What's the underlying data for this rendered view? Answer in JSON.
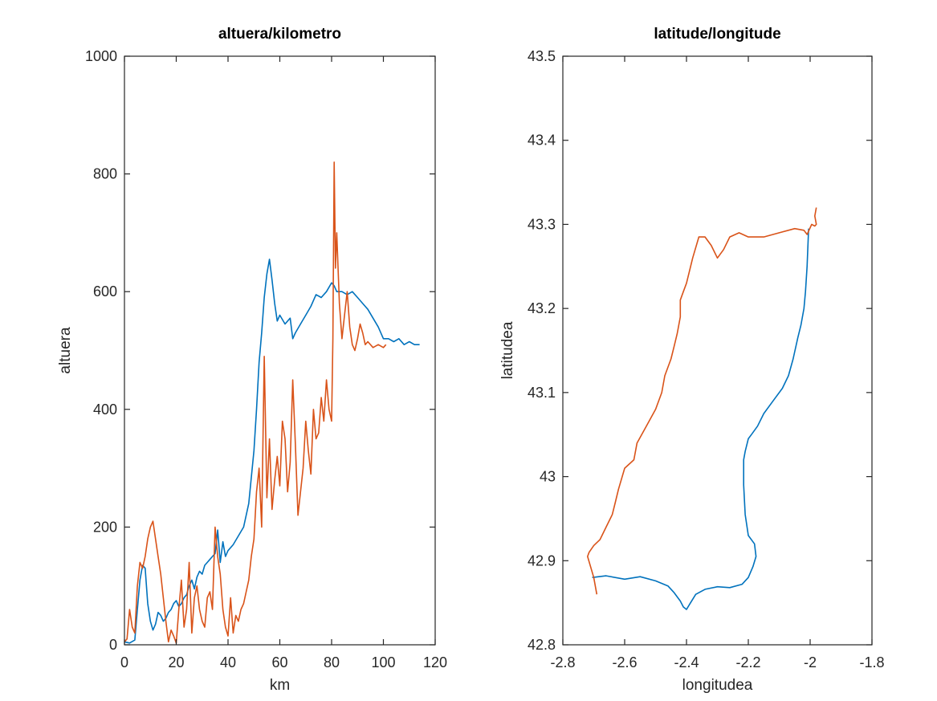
{
  "chart_data": [
    {
      "type": "line",
      "title": "altuera/kilometro",
      "xlabel": "km",
      "ylabel": "altuera",
      "xlim": [
        0,
        120
      ],
      "ylim": [
        0,
        1000
      ],
      "xticks": [
        0,
        20,
        40,
        60,
        80,
        100,
        120
      ],
      "yticks": [
        0,
        200,
        400,
        600,
        800,
        1000
      ],
      "xtick_labels": [
        "0",
        "20",
        "40",
        "60",
        "80",
        "100",
        "120"
      ],
      "ytick_labels": [
        "0",
        "200",
        "400",
        "600",
        "800",
        "1000"
      ],
      "grid": false,
      "series": [
        {
          "color": "#0072BD",
          "x": [
            0,
            2,
            4,
            5,
            6,
            7,
            8,
            9,
            10,
            11,
            12,
            13,
            14,
            15,
            16,
            17,
            18,
            19,
            20,
            21,
            22,
            23,
            24,
            25,
            26,
            27,
            28,
            29,
            30,
            31,
            32,
            33,
            34,
            35,
            36,
            37,
            38,
            39,
            40,
            42,
            44,
            46,
            48,
            50,
            51,
            52,
            53,
            54,
            55,
            56,
            57,
            58,
            59,
            60,
            62,
            64,
            65,
            66,
            68,
            70,
            72,
            74,
            76,
            78,
            80,
            81,
            82,
            84,
            86,
            88,
            90,
            92,
            94,
            96,
            98,
            100,
            102,
            104,
            106,
            108,
            110,
            112,
            114
          ],
          "y": [
            5,
            3,
            8,
            60,
            110,
            135,
            130,
            70,
            40,
            25,
            35,
            55,
            50,
            40,
            45,
            55,
            60,
            70,
            75,
            65,
            70,
            80,
            85,
            100,
            110,
            95,
            115,
            125,
            120,
            135,
            140,
            145,
            150,
            155,
            195,
            140,
            175,
            150,
            160,
            170,
            185,
            200,
            240,
            330,
            400,
            480,
            530,
            590,
            630,
            655,
            620,
            580,
            550,
            560,
            545,
            555,
            520,
            530,
            545,
            560,
            575,
            595,
            590,
            600,
            615,
            610,
            600,
            600,
            595,
            600,
            590,
            580,
            570,
            555,
            540,
            520,
            520,
            515,
            520,
            510,
            515,
            510,
            510
          ]
        },
        {
          "color": "#D95319",
          "x": [
            0,
            1,
            2,
            3,
            4,
            5,
            6,
            7,
            8,
            9,
            10,
            11,
            12,
            13,
            14,
            15,
            16,
            17,
            18,
            19,
            20,
            21,
            22,
            23,
            24,
            25,
            26,
            27,
            28,
            29,
            30,
            31,
            32,
            33,
            34,
            35,
            36,
            37,
            38,
            39,
            40,
            41,
            42,
            43,
            44,
            45,
            46,
            47,
            48,
            49,
            50,
            51,
            52,
            53,
            54,
            55,
            56,
            57,
            58,
            59,
            60,
            61,
            62,
            63,
            64,
            65,
            66,
            67,
            68,
            69,
            70,
            71,
            72,
            73,
            74,
            75,
            76,
            77,
            78,
            79,
            80,
            80.5,
            81,
            81.5,
            82,
            83,
            84,
            85,
            86,
            87,
            88,
            89,
            90,
            91,
            92,
            93,
            94,
            96,
            98,
            100,
            101
          ],
          "y": [
            5,
            10,
            60,
            30,
            20,
            100,
            140,
            130,
            150,
            180,
            200,
            210,
            180,
            150,
            120,
            80,
            40,
            5,
            25,
            15,
            3,
            60,
            110,
            30,
            60,
            140,
            20,
            80,
            100,
            60,
            40,
            30,
            80,
            90,
            60,
            200,
            150,
            120,
            60,
            30,
            15,
            80,
            20,
            50,
            40,
            60,
            70,
            90,
            110,
            150,
            180,
            260,
            300,
            200,
            490,
            250,
            350,
            230,
            280,
            320,
            270,
            380,
            350,
            260,
            310,
            450,
            340,
            220,
            260,
            300,
            380,
            330,
            290,
            400,
            350,
            360,
            420,
            380,
            450,
            400,
            380,
            520,
            820,
            640,
            700,
            580,
            520,
            560,
            600,
            540,
            510,
            500,
            520,
            545,
            530,
            510,
            515,
            505,
            510,
            505,
            510
          ]
        }
      ]
    },
    {
      "type": "line",
      "title": "latitude/longitude",
      "xlabel": "longitudea",
      "ylabel": "latitudea",
      "xlim": [
        -2.8,
        -1.8
      ],
      "ylim": [
        42.8,
        43.5
      ],
      "xticks": [
        -2.8,
        -2.6,
        -2.4,
        -2.2,
        -2,
        -1.8
      ],
      "yticks": [
        42.8,
        42.9,
        43,
        43.1,
        43.2,
        43.3,
        43.4,
        43.5
      ],
      "xtick_labels": [
        "-2.8",
        "-2.6",
        "-2.4",
        "-2.2",
        "-2",
        "-1.8"
      ],
      "ytick_labels": [
        "42.8",
        "42.9",
        "43",
        "43.1",
        "43.2",
        "43.3",
        "43.4",
        "43.5"
      ],
      "grid": false,
      "series": [
        {
          "color": "#0072BD",
          "x": [
            -2.705,
            -2.66,
            -2.6,
            -2.55,
            -2.5,
            -2.46,
            -2.44,
            -2.42,
            -2.41,
            -2.4,
            -2.39,
            -2.37,
            -2.34,
            -2.3,
            -2.26,
            -2.22,
            -2.2,
            -2.185,
            -2.175,
            -2.18,
            -2.2,
            -2.21,
            -2.215,
            -2.215,
            -2.21,
            -2.2,
            -2.19,
            -2.17,
            -2.15,
            -2.12,
            -2.09,
            -2.07,
            -2.055,
            -2.04,
            -2.03,
            -2.02,
            -2.015,
            -2.01,
            -2.005
          ],
          "y": [
            42.88,
            42.882,
            42.878,
            42.881,
            42.876,
            42.87,
            42.862,
            42.852,
            42.845,
            42.842,
            42.848,
            42.86,
            42.866,
            42.869,
            42.868,
            42.872,
            42.88,
            42.893,
            42.905,
            42.92,
            42.93,
            42.955,
            42.99,
            43.02,
            43.03,
            43.045,
            43.05,
            43.06,
            43.075,
            43.09,
            43.105,
            43.12,
            43.14,
            43.165,
            43.18,
            43.2,
            43.22,
            43.25,
            43.295
          ]
        },
        {
          "color": "#D95319",
          "x": [
            -2.69,
            -2.7,
            -2.72,
            -2.715,
            -2.7,
            -2.68,
            -2.66,
            -2.64,
            -2.63,
            -2.62,
            -2.6,
            -2.57,
            -2.56,
            -2.53,
            -2.5,
            -2.48,
            -2.47,
            -2.45,
            -2.44,
            -2.43,
            -2.42,
            -2.42,
            -2.41,
            -2.4,
            -2.38,
            -2.36,
            -2.34,
            -2.32,
            -2.3,
            -2.28,
            -2.26,
            -2.23,
            -2.2,
            -2.15,
            -2.1,
            -2.05,
            -2.02,
            -2.01,
            -1.995,
            -1.985,
            -1.98,
            -1.985,
            -1.98
          ],
          "y": [
            42.86,
            42.88,
            42.905,
            42.91,
            42.918,
            42.925,
            42.94,
            42.955,
            42.97,
            42.985,
            43.01,
            43.02,
            43.04,
            43.06,
            43.08,
            43.1,
            43.12,
            43.14,
            43.155,
            43.17,
            43.19,
            43.21,
            43.22,
            43.23,
            43.26,
            43.285,
            43.285,
            43.275,
            43.26,
            43.27,
            43.285,
            43.29,
            43.285,
            43.285,
            43.29,
            43.295,
            43.293,
            43.288,
            43.3,
            43.298,
            43.3,
            43.31,
            43.32
          ]
        }
      ]
    }
  ]
}
